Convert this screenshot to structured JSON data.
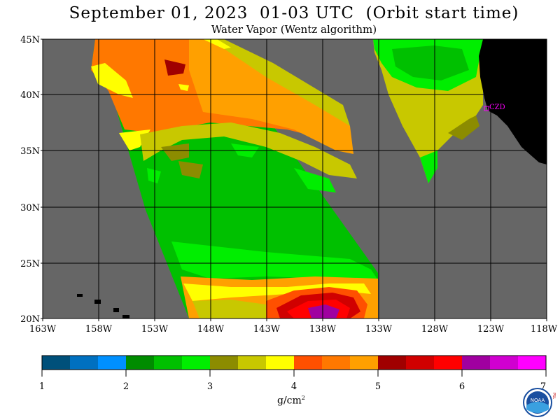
{
  "title": "September 01, 2023  01-03 UTC  (Orbit start time)",
  "subtitle": "Water Vapor (Wentz algorithm)",
  "map": {
    "lat_labels": [
      "45N",
      "40N",
      "35N",
      "30N",
      "25N",
      "20N"
    ],
    "lon_labels": [
      "163W",
      "158W",
      "153W",
      "148W",
      "143W",
      "138W",
      "133W",
      "128W",
      "123W",
      "118W"
    ],
    "station_label": "CZD",
    "colors": {
      "ocean_nodata": "#666666",
      "land": "#000000",
      "grid": "#000000",
      "station": "#ff00ff"
    }
  },
  "colorbar": {
    "tick_labels": [
      "1",
      "2",
      "3",
      "4",
      "5",
      "6",
      "7"
    ],
    "units_base": "g/cm",
    "units_exp": "2",
    "colors": [
      "#00507a",
      "#0070c0",
      "#0090ff",
      "#008c00",
      "#00c000",
      "#00ee00",
      "#8c8c00",
      "#c8c800",
      "#ffff00",
      "#ff5000",
      "#ff7800",
      "#ffa000",
      "#a00000",
      "#d00000",
      "#ff0000",
      "#a000a0",
      "#d000d0",
      "#ff00ff"
    ]
  },
  "logo": {
    "text": "NOAA",
    "side_text": "PSL"
  }
}
